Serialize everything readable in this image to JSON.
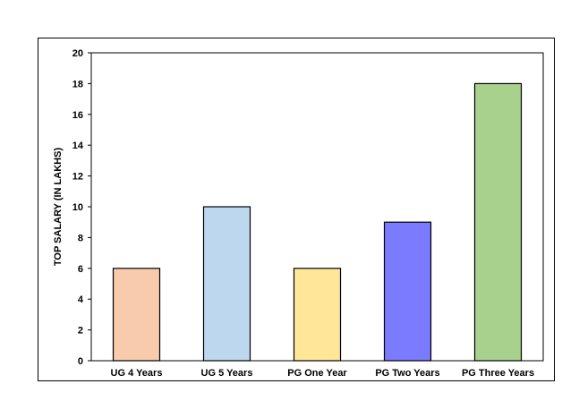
{
  "chart_data": {
    "type": "bar",
    "title": "",
    "xlabel": "",
    "ylabel": "TOP SALARY (IN LAKHS)",
    "categories": [
      "UG 4 Years",
      "UG 5 Years",
      "PG One Year",
      "PG Two Years",
      "PG Three Years"
    ],
    "values": [
      6,
      10,
      6,
      9,
      18
    ],
    "colors": [
      "#f8cbad",
      "#bdd7ee",
      "#ffe699",
      "#7b7bff",
      "#a9d18e"
    ],
    "ylim": [
      0,
      20
    ],
    "yticks": [
      0,
      2,
      4,
      6,
      8,
      10,
      12,
      14,
      16,
      18,
      20
    ],
    "grid": false,
    "legend": "none"
  }
}
